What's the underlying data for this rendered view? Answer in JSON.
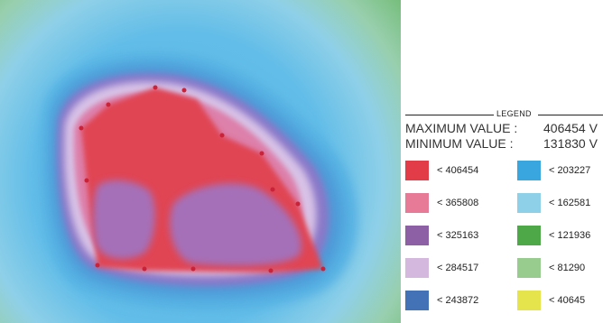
{
  "legend": {
    "title": "LEGEND",
    "max_label": "MAXIMUM VALUE :",
    "max_value": "406454 V",
    "min_label": "MINIMUM VALUE :",
    "min_value": "131830 V",
    "items": [
      {
        "text": "< 406454",
        "color": "#e13c48"
      },
      {
        "text": "< 365808",
        "color": "#e77a97"
      },
      {
        "text": "< 325163",
        "color": "#8d5fa5"
      },
      {
        "text": "< 284517",
        "color": "#d5b8dd"
      },
      {
        "text": "< 243872",
        "color": "#4472b6"
      },
      {
        "text": "< 203227",
        "color": "#3aa6df"
      },
      {
        "text": "< 162581",
        "color": "#8fd0e9"
      },
      {
        "text": "< 121936",
        "color": "#4ea848"
      },
      {
        "text": "< 81290",
        "color": "#98cc8f"
      },
      {
        "text": "< 40645",
        "color": "#e5e44c"
      }
    ]
  }
}
